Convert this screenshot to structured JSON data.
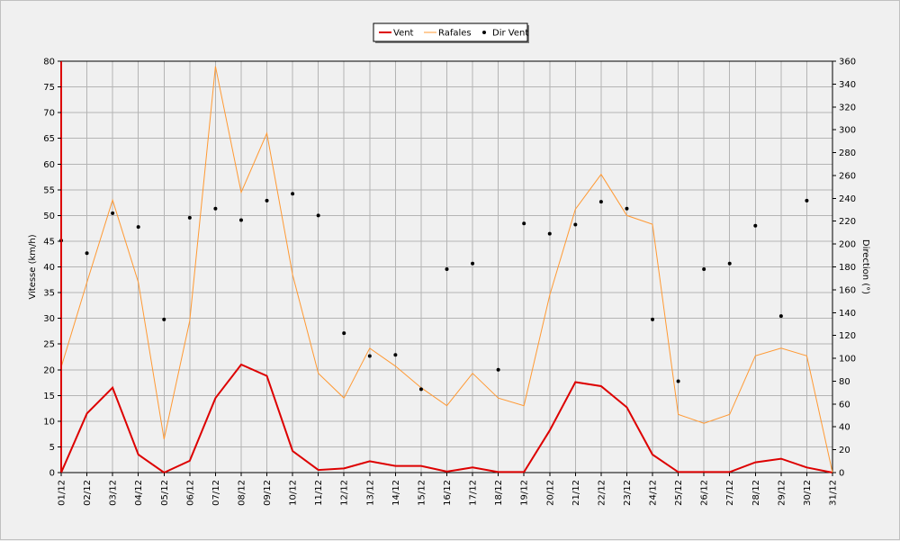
{
  "colors": {
    "background": "#f0f0f0",
    "plot_background": "#f0f0f0",
    "grid": "#b4b4b4",
    "vent": "#dd0000",
    "rafales": "#ff9933",
    "dir_vent": "#000000"
  },
  "legend": {
    "items": [
      {
        "label": "Vent",
        "marker": "line",
        "color": "#dd0000"
      },
      {
        "label": "Rafales",
        "marker": "line",
        "color": "#ff9933"
      },
      {
        "label": "Dir Vent",
        "marker": "dot",
        "color": "#000000"
      }
    ],
    "placement": "top-center"
  },
  "chart_data": {
    "type": "line",
    "title": "",
    "xlabel": "",
    "ylabel_left": "Vitesse (km/h)",
    "ylabel_right": "Direction (°)",
    "ylim_left": [
      0,
      80
    ],
    "ylim_right": [
      0,
      360
    ],
    "yticks_left": [
      0,
      5,
      10,
      15,
      20,
      25,
      30,
      35,
      40,
      45,
      50,
      55,
      60,
      65,
      70,
      75,
      80
    ],
    "yticks_right": [
      0,
      20,
      40,
      60,
      80,
      100,
      120,
      140,
      160,
      180,
      200,
      220,
      240,
      260,
      280,
      300,
      320,
      340,
      360
    ],
    "grid": true,
    "categories": [
      "01/12",
      "02/12",
      "03/12",
      "04/12",
      "05/12",
      "06/12",
      "07/12",
      "08/12",
      "09/12",
      "10/12",
      "11/12",
      "12/12",
      "13/12",
      "14/12",
      "15/12",
      "16/12",
      "17/12",
      "18/12",
      "19/12",
      "20/12",
      "21/12",
      "22/12",
      "23/12",
      "24/12",
      "25/12",
      "26/12",
      "27/12",
      "28/12",
      "29/12",
      "30/12",
      "31/12"
    ],
    "series": [
      {
        "name": "Vent",
        "axis": "left",
        "style": "line",
        "color": "#dd0000",
        "values": [
          0,
          11.5,
          16.5,
          3.5,
          0,
          2.3,
          14.5,
          21,
          18.8,
          4.2,
          0.5,
          0.8,
          2.2,
          1.3,
          1.3,
          0.2,
          1.0,
          0.1,
          0.1,
          8.2,
          17.6,
          16.8,
          12.7,
          3.5,
          0.1,
          0.1,
          0.1,
          2.0,
          2.7,
          1.0,
          0
        ]
      },
      {
        "name": "Rafales",
        "axis": "left",
        "style": "line",
        "color": "#ff9933",
        "values": [
          20.5,
          37,
          53,
          37,
          6.5,
          29.5,
          79,
          54.5,
          66,
          38.5,
          19.3,
          14.5,
          24.2,
          20.7,
          16.5,
          13.0,
          19.3,
          14.5,
          13.0,
          34.5,
          51.2,
          58,
          50,
          48.3,
          11.3,
          9.6,
          11.3,
          22.7,
          24.2,
          22.7,
          0
        ]
      },
      {
        "name": "Dir Vent",
        "axis": "right",
        "style": "dot",
        "color": "#000000",
        "values": [
          203,
          192,
          227,
          215,
          134,
          223,
          231,
          221,
          238,
          244,
          225,
          122,
          102,
          103,
          73,
          178,
          183,
          90,
          218,
          209,
          217,
          237,
          231,
          134,
          80,
          178,
          183,
          216,
          137,
          238,
          null
        ]
      }
    ]
  }
}
